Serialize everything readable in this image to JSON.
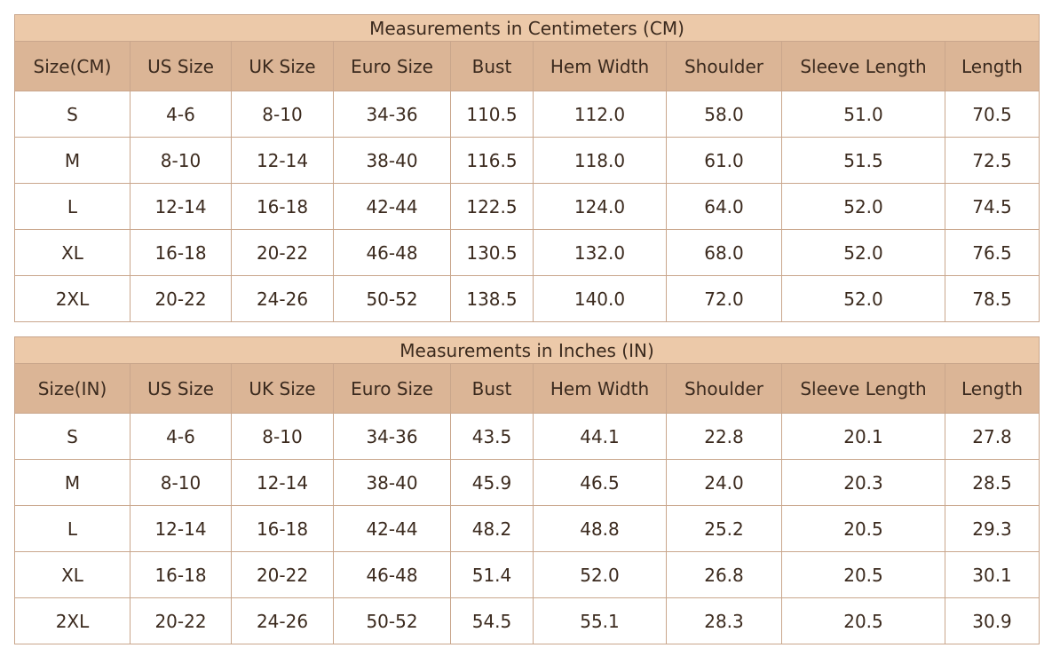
{
  "tables": [
    {
      "title": "Measurements in Centimeters (CM)",
      "headers": [
        "Size(CM)",
        "US Size",
        "UK Size",
        "Euro Size",
        "Bust",
        "Hem Width",
        "Shoulder",
        "Sleeve Length",
        "Length"
      ],
      "rows": [
        [
          "S",
          "4-6",
          "8-10",
          "34-36",
          "110.5",
          "112.0",
          "58.0",
          "51.0",
          "70.5"
        ],
        [
          "M",
          "8-10",
          "12-14",
          "38-40",
          "116.5",
          "118.0",
          "61.0",
          "51.5",
          "72.5"
        ],
        [
          "L",
          "12-14",
          "16-18",
          "42-44",
          "122.5",
          "124.0",
          "64.0",
          "52.0",
          "74.5"
        ],
        [
          "XL",
          "16-18",
          "20-22",
          "46-48",
          "130.5",
          "132.0",
          "68.0",
          "52.0",
          "76.5"
        ],
        [
          "2XL",
          "20-22",
          "24-26",
          "50-52",
          "138.5",
          "140.0",
          "72.0",
          "52.0",
          "78.5"
        ]
      ]
    },
    {
      "title": "Measurements in Inches (IN)",
      "headers": [
        "Size(IN)",
        "US Size",
        "UK Size",
        "Euro Size",
        "Bust",
        "Hem Width",
        "Shoulder",
        "Sleeve Length",
        "Length"
      ],
      "rows": [
        [
          "S",
          "4-6",
          "8-10",
          "34-36",
          "43.5",
          "44.1",
          "22.8",
          "20.1",
          "27.8"
        ],
        [
          "M",
          "8-10",
          "12-14",
          "38-40",
          "45.9",
          "46.5",
          "24.0",
          "20.3",
          "28.5"
        ],
        [
          "L",
          "12-14",
          "16-18",
          "42-44",
          "48.2",
          "48.8",
          "25.2",
          "20.5",
          "29.3"
        ],
        [
          "XL",
          "16-18",
          "20-22",
          "46-48",
          "51.4",
          "52.0",
          "26.8",
          "20.5",
          "30.1"
        ],
        [
          "2XL",
          "20-22",
          "24-26",
          "50-52",
          "54.5",
          "55.1",
          "28.3",
          "20.5",
          "30.9"
        ]
      ]
    }
  ]
}
